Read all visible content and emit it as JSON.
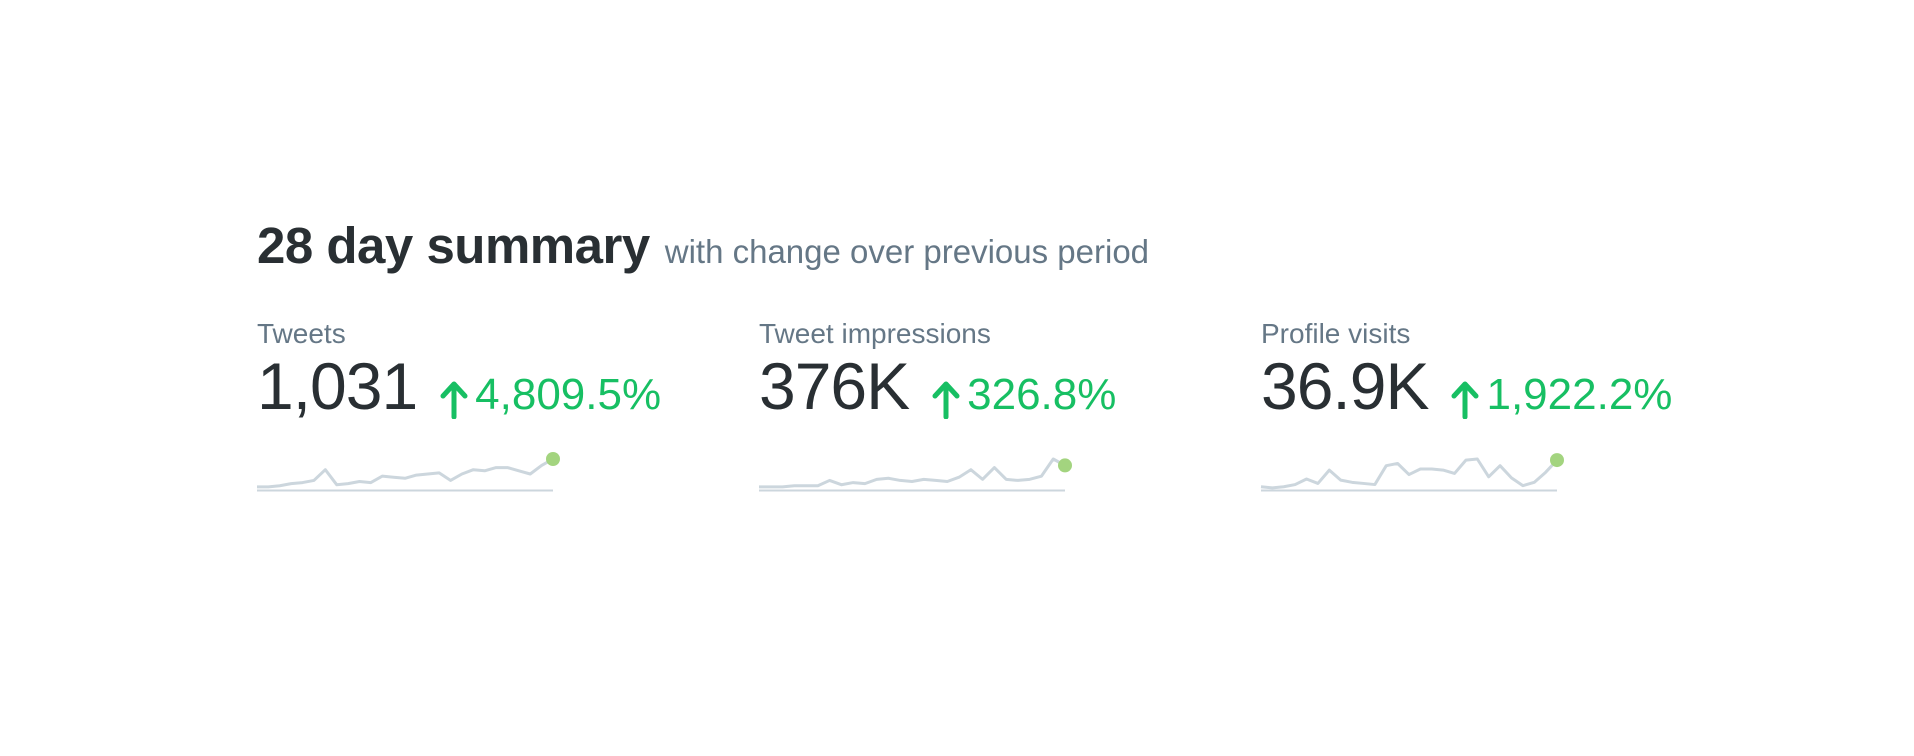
{
  "summary": {
    "title": "28 day summary",
    "subtitle": "with change over previous period"
  },
  "metrics": [
    {
      "label": "Tweets",
      "value": "1,031",
      "change": "4,809.5%",
      "direction_icon": "arrow-up-icon",
      "trend": [
        2,
        2,
        3,
        5,
        6,
        8,
        18,
        4,
        5,
        7,
        6,
        12,
        11,
        10,
        13,
        14,
        15,
        8,
        14,
        18,
        17,
        20,
        20,
        17,
        14,
        22,
        28
      ]
    },
    {
      "label": "Tweet impressions",
      "value": "376K",
      "change": "326.8%",
      "direction_icon": "arrow-up-icon",
      "trend": [
        2,
        2,
        2,
        3,
        3,
        3,
        8,
        4,
        6,
        5,
        9,
        10,
        8,
        7,
        9,
        8,
        7,
        11,
        18,
        9,
        20,
        9,
        8,
        9,
        12,
        28,
        22
      ]
    },
    {
      "label": "Profile visits",
      "value": "36.9K",
      "change": "1,922.2%",
      "direction_icon": "arrow-up-icon",
      "trend": [
        2,
        1,
        2,
        4,
        9,
        5,
        17,
        8,
        6,
        5,
        4,
        21,
        23,
        13,
        18,
        18,
        17,
        14,
        26,
        27,
        11,
        21,
        10,
        3,
        6,
        15,
        26
      ]
    }
  ],
  "colors": {
    "title": "#292f33",
    "secondary_text": "#657786",
    "positive_change": "#17bf63",
    "sparkline": "#ccd6dd",
    "sparkline_end_dot": "#a3d47f"
  }
}
